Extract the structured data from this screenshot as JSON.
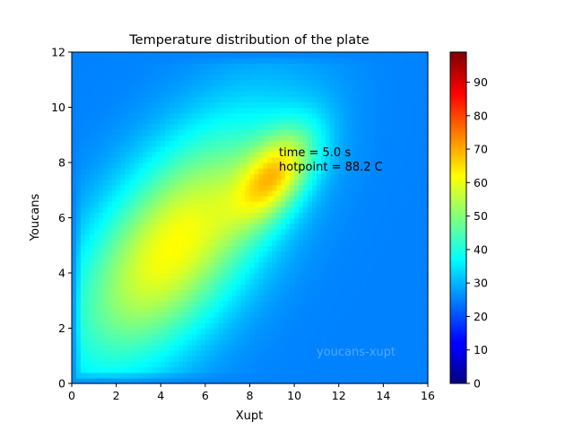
{
  "chart_data": {
    "type": "heatmap",
    "title": "Temperature distribution of the plate",
    "xlabel": "Xupt",
    "ylabel": "Youcans",
    "xlim": [
      0,
      16
    ],
    "ylim": [
      0,
      12
    ],
    "x_ticks": [
      "0",
      "2",
      "4",
      "6",
      "8",
      "10",
      "12",
      "14",
      "16"
    ],
    "y_ticks": [
      "0",
      "2",
      "4",
      "6",
      "8",
      "10",
      "12"
    ],
    "colorbar": {
      "colormap": "jet",
      "range": [
        0,
        99
      ],
      "ticks": [
        "0",
        "10",
        "20",
        "30",
        "40",
        "50",
        "60",
        "70",
        "80",
        "90"
      ]
    },
    "background_value": 25,
    "field": {
      "peak": {
        "x": 9.2,
        "y": 7.6,
        "value": 88.2
      },
      "broad_region_center": {
        "x": 4.6,
        "y": 5.0
      }
    },
    "annotations": {
      "time_label": "time = 5.0 s",
      "hotpoint_label": "hotpoint = 88.2 C",
      "watermark": "youcans-xupt"
    },
    "grid": false
  }
}
